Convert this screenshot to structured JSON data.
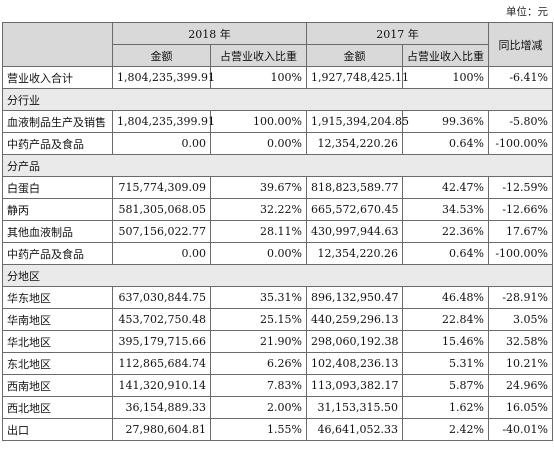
{
  "unit_label": "单位：元",
  "header": {
    "year_a": "2018 年",
    "year_b": "2017 年",
    "yoy": "同比增减",
    "amount": "金额",
    "share": "占营业收入比重"
  },
  "total": {
    "label": "营业收入合计",
    "a_amount": "1,804,235,399.91",
    "a_share": "100%",
    "b_amount": "1,927,748,425.11",
    "b_share": "100%",
    "yoy": "-6.41%"
  },
  "sections": [
    {
      "title": "分行业",
      "rows": [
        {
          "label": "血液制品生产及销售",
          "a_amount": "1,804,235,399.91",
          "a_share": "100.00%",
          "b_amount": "1,915,394,204.85",
          "b_share": "99.36%",
          "yoy": "-5.80%"
        },
        {
          "label": "中药产品及食品",
          "a_amount": "0.00",
          "a_share": "0.00%",
          "b_amount": "12,354,220.26",
          "b_share": "0.64%",
          "yoy": "-100.00%"
        }
      ]
    },
    {
      "title": "分产品",
      "rows": [
        {
          "label": "白蛋白",
          "a_amount": "715,774,309.09",
          "a_share": "39.67%",
          "b_amount": "818,823,589.77",
          "b_share": "42.47%",
          "yoy": "-12.59%"
        },
        {
          "label": "静丙",
          "a_amount": "581,305,068.05",
          "a_share": "32.22%",
          "b_amount": "665,572,670.45",
          "b_share": "34.53%",
          "yoy": "-12.66%"
        },
        {
          "label": "其他血液制品",
          "a_amount": "507,156,022.77",
          "a_share": "28.11%",
          "b_amount": "430,997,944.63",
          "b_share": "22.36%",
          "yoy": "17.67%"
        },
        {
          "label": "中药产品及食品",
          "a_amount": "0.00",
          "a_share": "0.00%",
          "b_amount": "12,354,220.26",
          "b_share": "0.64%",
          "yoy": "-100.00%"
        }
      ]
    },
    {
      "title": "分地区",
      "rows": [
        {
          "label": "华东地区",
          "a_amount": "637,030,844.75",
          "a_share": "35.31%",
          "b_amount": "896,132,950.47",
          "b_share": "46.48%",
          "yoy": "-28.91%"
        },
        {
          "label": "华南地区",
          "a_amount": "453,702,750.48",
          "a_share": "25.15%",
          "b_amount": "440,259,296.13",
          "b_share": "22.84%",
          "yoy": "3.05%"
        },
        {
          "label": "华北地区",
          "a_amount": "395,179,715.66",
          "a_share": "21.90%",
          "b_amount": "298,060,192.38",
          "b_share": "15.46%",
          "yoy": "32.58%"
        },
        {
          "label": "东北地区",
          "a_amount": "112,865,684.74",
          "a_share": "6.26%",
          "b_amount": "102,408,236.13",
          "b_share": "5.31%",
          "yoy": "10.21%"
        },
        {
          "label": "西南地区",
          "a_amount": "141,320,910.14",
          "a_share": "7.83%",
          "b_amount": "113,093,382.17",
          "b_share": "5.87%",
          "yoy": "24.96%"
        },
        {
          "label": "西北地区",
          "a_amount": "36,154,889.33",
          "a_share": "2.00%",
          "b_amount": "31,153,315.50",
          "b_share": "1.62%",
          "yoy": "16.05%"
        },
        {
          "label": "出口",
          "a_amount": "27,980,604.81",
          "a_share": "1.55%",
          "b_amount": "46,641,052.33",
          "b_share": "2.42%",
          "yoy": "-40.01%"
        }
      ]
    }
  ]
}
